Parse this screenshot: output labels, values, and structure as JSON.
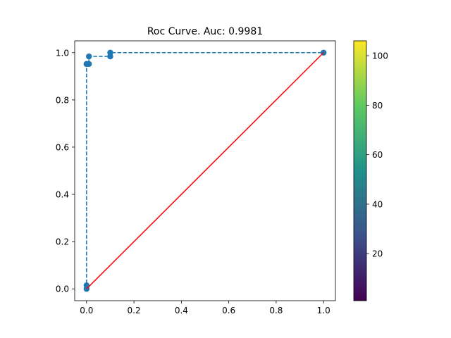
{
  "chart_data": {
    "type": "line",
    "title": "Roc Curve. Auc: 0.9981",
    "xlabel": "",
    "ylabel": "",
    "xlim": [
      -0.05,
      1.05
    ],
    "ylim": [
      -0.05,
      1.05
    ],
    "xticks": [
      0.0,
      0.2,
      0.4,
      0.6,
      0.8,
      1.0
    ],
    "xtick_labels": [
      "0.0",
      "0.2",
      "0.4",
      "0.6",
      "0.8",
      "1.0"
    ],
    "yticks": [
      0.0,
      0.2,
      0.4,
      0.6,
      0.8,
      1.0
    ],
    "ytick_labels": [
      "0.0",
      "0.2",
      "0.4",
      "0.6",
      "0.8",
      "1.0"
    ],
    "grid": false,
    "series": [
      {
        "style": "dashed-markers",
        "color": "#1f77b4",
        "x": [
          0.0,
          0.0,
          0.0,
          0.0,
          0.01,
          0.01,
          0.1,
          0.1,
          1.0
        ],
        "y": [
          0.0,
          0.015,
          0.952,
          0.952,
          0.952,
          0.984,
          0.984,
          1.0,
          1.0
        ]
      },
      {
        "style": "solid",
        "color": "#ff0000",
        "x": [
          0.0,
          1.0
        ],
        "y": [
          0.0,
          1.0
        ]
      }
    ],
    "colorbar": {
      "colormap": "viridis",
      "range": [
        1,
        106
      ],
      "ticks": [
        20,
        40,
        60,
        80,
        100
      ],
      "tick_labels": [
        "20",
        "40",
        "60",
        "80",
        "100"
      ]
    }
  }
}
